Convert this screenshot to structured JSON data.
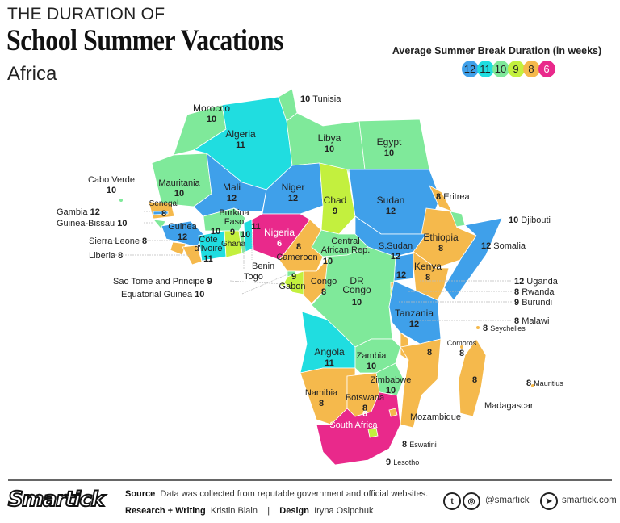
{
  "header": {
    "kicker": "THE DURATION OF",
    "title": "School Summer Vacations",
    "region": "Africa"
  },
  "legend": {
    "title": "Average Summer Break Duration (in weeks)",
    "items": [
      {
        "weeks": 12,
        "color": "#3fa0ea"
      },
      {
        "weeks": 11,
        "color": "#20dde0"
      },
      {
        "weeks": 10,
        "color": "#7fe99a"
      },
      {
        "weeks": 9,
        "color": "#c3f03e"
      },
      {
        "weeks": 8,
        "color": "#f5b94c"
      },
      {
        "weeks": 6,
        "color": "#e9298b"
      }
    ]
  },
  "countries": {
    "morocco": {
      "name": "Morocco",
      "weeks": 10
    },
    "tunisia": {
      "name": "Tunisia",
      "weeks": 10
    },
    "algeria": {
      "name": "Algeria",
      "weeks": 11
    },
    "libya": {
      "name": "Libya",
      "weeks": 10
    },
    "egypt": {
      "name": "Egypt",
      "weeks": 10
    },
    "mauritania": {
      "name": "Mauritania",
      "weeks": 10
    },
    "mali": {
      "name": "Mali",
      "weeks": 12
    },
    "niger": {
      "name": "Niger",
      "weeks": 12
    },
    "chad": {
      "name": "Chad",
      "weeks": 9
    },
    "sudan": {
      "name": "Sudan",
      "weeks": 12
    },
    "eritrea": {
      "name": "Eritrea",
      "weeks": 8
    },
    "djibouti": {
      "name": "Djibouti",
      "weeks": 10
    },
    "ethiopia": {
      "name": "Ethiopia",
      "weeks": 8
    },
    "somalia": {
      "name": "Somalia",
      "weeks": 12
    },
    "cabo_verde": {
      "name": "Cabo Verde",
      "weeks": 10
    },
    "senegal": {
      "name": "Senegal",
      "weeks": 8
    },
    "gambia": {
      "name": "Gambia",
      "weeks": 12
    },
    "guinea_bissau": {
      "name": "Guinea-Bissau",
      "weeks": 10
    },
    "guinea": {
      "name": "Guinea",
      "weeks": 12
    },
    "sierra_leone": {
      "name": "Sierra Leone",
      "weeks": 8
    },
    "liberia": {
      "name": "Liberia",
      "weeks": 8
    },
    "cote_divoire": {
      "name": "Côte d'Ivoire",
      "weeks": 11
    },
    "burkina_faso": {
      "name": "Burkina Faso",
      "weeks": 10
    },
    "ghana": {
      "name": "Ghana",
      "weeks": 9
    },
    "togo": {
      "name": "Togo",
      "weeks": 10
    },
    "benin": {
      "name": "Benin",
      "weeks": 11
    },
    "nigeria": {
      "name": "Nigeria",
      "weeks": 6
    },
    "cameroon": {
      "name": "Cameroon",
      "weeks": 8
    },
    "car": {
      "name": "Central African Rep.",
      "weeks": 10
    },
    "south_sudan": {
      "name": "S.Sudan",
      "weeks": 12
    },
    "kenya": {
      "name": "Kenya",
      "weeks": 8
    },
    "uganda": {
      "name": "Uganda",
      "weeks": 12
    },
    "rwanda": {
      "name": "Rwanda",
      "weeks": 8
    },
    "burundi": {
      "name": "Burundi",
      "weeks": 9
    },
    "sao_tome": {
      "name": "Sao Tome and Principe",
      "weeks": 9
    },
    "eq_guinea": {
      "name": "Equatorial Guinea",
      "weeks": 10
    },
    "gabon": {
      "name": "Gabon",
      "weeks": 9
    },
    "congo": {
      "name": "Congo",
      "weeks": 8
    },
    "dr_congo": {
      "name": "DR Congo",
      "weeks": 10
    },
    "tanzania": {
      "name": "Tanzania",
      "weeks": 12
    },
    "malawi": {
      "name": "Malawi",
      "weeks": 8
    },
    "seychelles": {
      "name": "Seychelles",
      "weeks": 8
    },
    "comoros": {
      "name": "Comoros",
      "weeks": 8
    },
    "angola": {
      "name": "Angola",
      "weeks": 11
    },
    "zambia": {
      "name": "Zambia",
      "weeks": 10
    },
    "mozambique": {
      "name": "Mozambique",
      "weeks": 8
    },
    "madagascar": {
      "name": "Madagascar",
      "weeks": 8
    },
    "mauritius": {
      "name": "Mauritius",
      "weeks": 8
    },
    "zimbabwe": {
      "name": "Zimbabwe",
      "weeks": 10
    },
    "namibia": {
      "name": "Namibia",
      "weeks": 8
    },
    "botswana": {
      "name": "Botswana",
      "weeks": 8
    },
    "south_africa": {
      "name": "South Africa",
      "weeks": 6
    },
    "eswatini": {
      "name": "Eswatini",
      "weeks": 8
    },
    "lesotho": {
      "name": "Lesotho",
      "weeks": 9
    }
  },
  "footer": {
    "logo": "Smartick",
    "source_label": "Source",
    "source_text": "Data was collected from reputable government and official websites.",
    "research_label": "Research + Writing",
    "research_name": "Kristin Blain",
    "separator": "|",
    "design_label": "Design",
    "design_name": "Iryna Osipchuk",
    "social_handle": "@smartick",
    "website": "smartick.com"
  }
}
